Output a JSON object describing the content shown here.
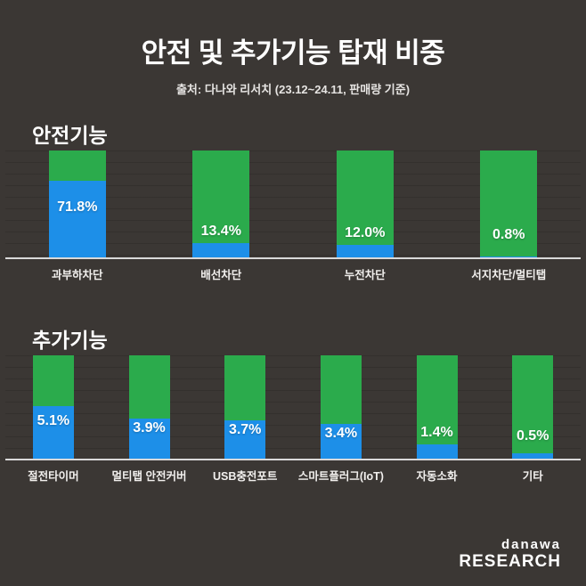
{
  "page": {
    "title": "안전 및 추가기능 탑재 비중",
    "subtitle": "출처: 다나와 리서치 (23.12~24.11, 판매량 기준)"
  },
  "colors": {
    "background": "#3b3734",
    "bar_green": "#2bab4c",
    "bar_blue": "#1d8fe8",
    "baseline": "#d9d9d9",
    "text": "#ffffff"
  },
  "logo": {
    "line1": "danawa",
    "line2": "RESEARCH"
  },
  "chart_data": [
    {
      "type": "bar",
      "title": "안전기능",
      "categories": [
        "과부하차단",
        "배선차단",
        "누전차단",
        "서지차단/멀티탭"
      ],
      "values": [
        71.8,
        13.4,
        12.0,
        0.8
      ],
      "value_labels": [
        "71.8%",
        "13.4%",
        "12.0%",
        "0.8%"
      ],
      "unit": "%",
      "ylim": [
        0,
        100
      ],
      "style_note": "full-height green bar with blue fill from bottom representing value; white bold value label; light horizontal gridlines; baseline under bars"
    },
    {
      "type": "bar",
      "title": "추가기능",
      "categories": [
        "절전타이머",
        "멀티탭 안전커버",
        "USB충전포트",
        "스마트플러그(IoT)",
        "자동소화",
        "기타"
      ],
      "values": [
        5.1,
        3.9,
        3.7,
        3.4,
        1.4,
        0.5
      ],
      "value_labels": [
        "5.1%",
        "3.9%",
        "3.7%",
        "3.4%",
        "1.4%",
        "0.5%"
      ],
      "unit": "%",
      "ylim": [
        0,
        10
      ],
      "style_note": "full-height green bar with blue fill from bottom scaled to 0-10%; white bold value label"
    }
  ]
}
